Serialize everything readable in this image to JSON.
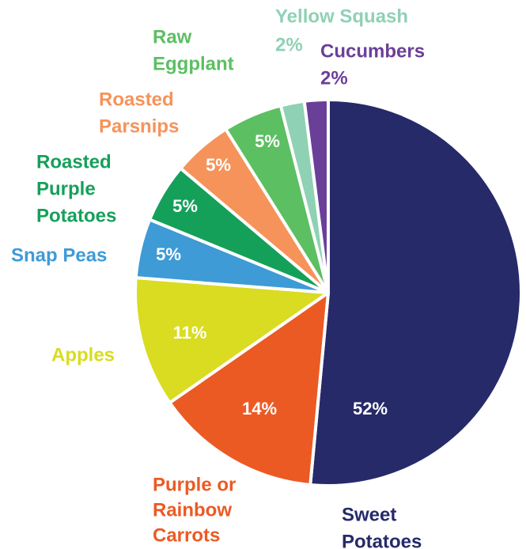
{
  "chart_data": {
    "type": "pie",
    "title": "",
    "slices": [
      {
        "label": [
          "Sweet",
          "Potatoes"
        ],
        "value": 52,
        "value_label": "52%",
        "color": "#262a69"
      },
      {
        "label": [
          "Purple or",
          "Rainbow",
          "Carrots"
        ],
        "value": 14,
        "value_label": "14%",
        "color": "#ec5a24"
      },
      {
        "label": [
          "Apples"
        ],
        "value": 11,
        "value_label": "11%",
        "color": "#d9dc20"
      },
      {
        "label": [
          "Snap Peas"
        ],
        "value": 5,
        "value_label": "5%",
        "color": "#3e9bd6"
      },
      {
        "label": [
          "Roasted",
          "Purple",
          "Potatoes"
        ],
        "value": 5,
        "value_label": "5%",
        "color": "#15a05a"
      },
      {
        "label": [
          "Roasted",
          "Parsnips"
        ],
        "value": 5,
        "value_label": "5%",
        "color": "#f6935a"
      },
      {
        "label": [
          "Raw",
          "Eggplant"
        ],
        "value": 5,
        "value_label": "5%",
        "color": "#5cbf62"
      },
      {
        "label": [
          "Yellow Squash"
        ],
        "value": 2,
        "value_label": "2%",
        "color": "#8fd1b5"
      },
      {
        "label": [
          "Cucumbers"
        ],
        "value": 2,
        "value_label": "2%",
        "color": "#6a3f98"
      }
    ]
  }
}
